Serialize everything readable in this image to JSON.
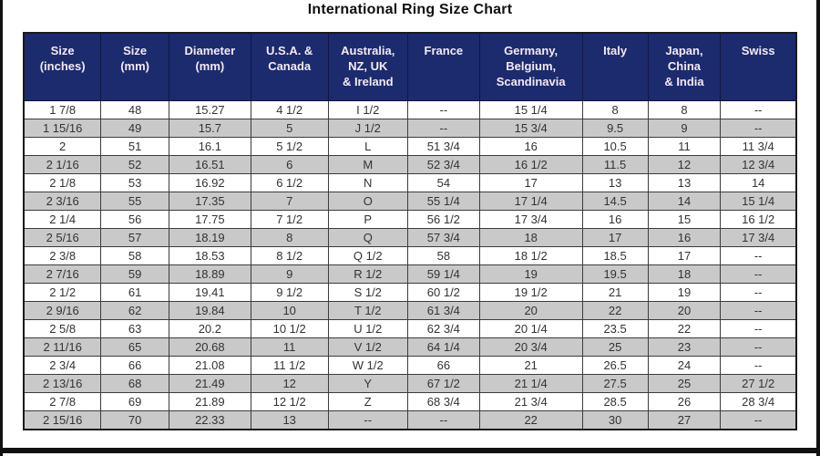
{
  "title": "International Ring Size Chart",
  "colors": {
    "header_bg": "#1c2a6e",
    "header_text": "#f4eaf0",
    "row_bg": "#ffffff",
    "alt_row_bg": "#c9c9c9",
    "grid_line": "#3c3c3c",
    "frame": "#111111",
    "cell_text": "#333333",
    "title_text": "#111111"
  },
  "table": {
    "header_lines": [
      [
        "Size",
        "(inches)"
      ],
      [
        "Size",
        "(mm)"
      ],
      [
        "Diameter",
        "(mm)"
      ],
      [
        "U.S.A. &",
        "Canada"
      ],
      [
        "Australia,",
        "NZ, UK",
        "& Ireland"
      ],
      [
        "France"
      ],
      [
        "Germany,",
        "Belgium,",
        "Scandinavia"
      ],
      [
        "Italy"
      ],
      [
        "Japan,",
        "China",
        "& India"
      ],
      [
        "Swiss"
      ]
    ]
  },
  "chart_data": {
    "type": "table",
    "title": "International Ring Size Chart",
    "columns": [
      "Size (inches)",
      "Size (mm)",
      "Diameter (mm)",
      "U.S.A. & Canada",
      "Australia, NZ, UK & Ireland",
      "France",
      "Germany, Belgium, Scandinavia",
      "Italy",
      "Japan, China & India",
      "Swiss"
    ],
    "rows": [
      [
        "1 7/8",
        "48",
        "15.27",
        "4 1/2",
        "I 1/2",
        "--",
        "15 1/4",
        "8",
        "8",
        "--"
      ],
      [
        "1 15/16",
        "49",
        "15.7",
        "5",
        "J 1/2",
        "--",
        "15 3/4",
        "9.5",
        "9",
        "--"
      ],
      [
        "2",
        "51",
        "16.1",
        "5 1/2",
        "L",
        "51 3/4",
        "16",
        "10.5",
        "11",
        "11 3/4"
      ],
      [
        "2 1/16",
        "52",
        "16.51",
        "6",
        "M",
        "52 3/4",
        "16 1/2",
        "11.5",
        "12",
        "12 3/4"
      ],
      [
        "2 1/8",
        "53",
        "16.92",
        "6 1/2",
        "N",
        "54",
        "17",
        "13",
        "13",
        "14"
      ],
      [
        "2 3/16",
        "55",
        "17.35",
        "7",
        "O",
        "55 1/4",
        "17 1/4",
        "14.5",
        "14",
        "15 1/4"
      ],
      [
        "2 1/4",
        "56",
        "17.75",
        "7 1/2",
        "P",
        "56 1/2",
        "17 3/4",
        "16",
        "15",
        "16 1/2"
      ],
      [
        "2 5/16",
        "57",
        "18.19",
        "8",
        "Q",
        "57 3/4",
        "18",
        "17",
        "16",
        "17 3/4"
      ],
      [
        "2 3/8",
        "58",
        "18.53",
        "8 1/2",
        "Q 1/2",
        "58",
        "18 1/2",
        "18.5",
        "17",
        "--"
      ],
      [
        "2 7/16",
        "59",
        "18.89",
        "9",
        "R 1/2",
        "59 1/4",
        "19",
        "19.5",
        "18",
        "--"
      ],
      [
        "2 1/2",
        "61",
        "19.41",
        "9 1/2",
        "S 1/2",
        "60 1/2",
        "19 1/2",
        "21",
        "19",
        "--"
      ],
      [
        "2 9/16",
        "62",
        "19.84",
        "10",
        "T 1/2",
        "61 3/4",
        "20",
        "22",
        "20",
        "--"
      ],
      [
        "2 5/8",
        "63",
        "20.2",
        "10 1/2",
        "U 1/2",
        "62 3/4",
        "20 1/4",
        "23.5",
        "22",
        "--"
      ],
      [
        "2 11/16",
        "65",
        "20.68",
        "11",
        "V 1/2",
        "64 1/4",
        "20 3/4",
        "25",
        "23",
        "--"
      ],
      [
        "2 3/4",
        "66",
        "21.08",
        "11 1/2",
        "W 1/2",
        "66",
        "21",
        "26.5",
        "24",
        "--"
      ],
      [
        "2 13/16",
        "68",
        "21.49",
        "12",
        "Y",
        "67 1/2",
        "21 1/4",
        "27.5",
        "25",
        "27 1/2"
      ],
      [
        "2 7/8",
        "69",
        "21.89",
        "12 1/2",
        "Z",
        "68 3/4",
        "21 3/4",
        "28.5",
        "26",
        "28 3/4"
      ],
      [
        "2 15/16",
        "70",
        "22.33",
        "13",
        "--",
        "--",
        "22",
        "30",
        "27",
        "--"
      ]
    ]
  }
}
